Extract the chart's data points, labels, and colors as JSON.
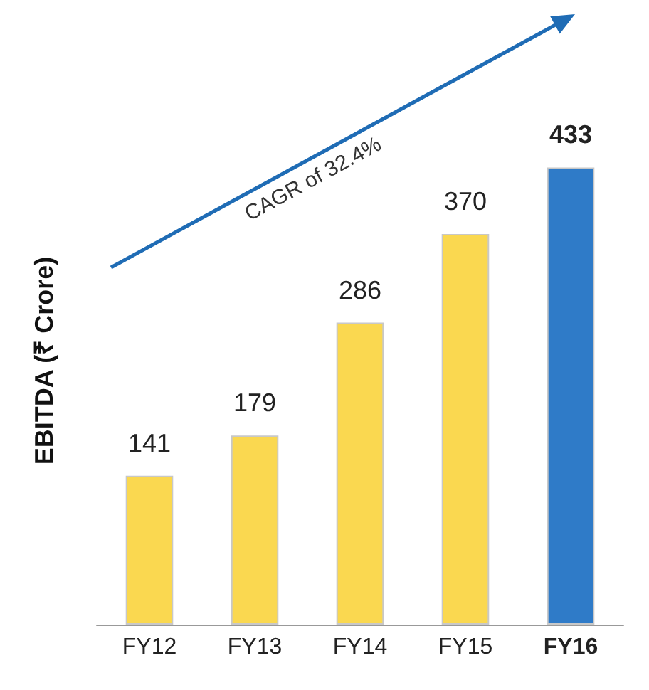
{
  "chart_data": {
    "type": "bar",
    "ylabel": "EBITDA (₹ Crore)",
    "categories": [
      "FY12",
      "FY13",
      "FY14",
      "FY15",
      "FY16"
    ],
    "values": [
      141,
      179,
      286,
      370,
      433
    ],
    "colors": [
      "#fad850",
      "#fad850",
      "#fad850",
      "#fad850",
      "#2f7bc8"
    ],
    "data_labels": true,
    "grid": false,
    "relative": false,
    "annotations": [
      "CAGR of 32.4%"
    ]
  }
}
